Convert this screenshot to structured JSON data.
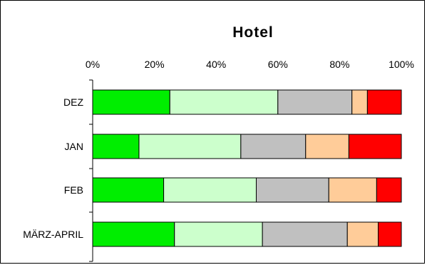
{
  "chart_data": {
    "type": "bar",
    "orientation": "horizontal",
    "stacked": "percent",
    "title": "Hotel",
    "xlabel": "",
    "ylabel": "",
    "xlim": [
      0,
      100
    ],
    "x_ticks": [
      "0%",
      "20%",
      "40%",
      "60%",
      "80%",
      "100%"
    ],
    "categories": [
      "DEZ",
      "JAN",
      "FEB",
      "MÄRZ-APRIL"
    ],
    "legend": "none",
    "grid": false,
    "series": [
      {
        "color": "#00ee00",
        "values": [
          25,
          15,
          23,
          26.5
        ]
      },
      {
        "color": "#ccffcc",
        "values": [
          35,
          33,
          30,
          28.5
        ]
      },
      {
        "color": "#c0c0c0",
        "values": [
          24,
          21,
          23.5,
          27.5
        ]
      },
      {
        "color": "#ffcc99",
        "values": [
          5,
          14,
          15.5,
          10
        ]
      },
      {
        "color": "#ff0000",
        "values": [
          11,
          17,
          8,
          7.5
        ]
      }
    ]
  }
}
